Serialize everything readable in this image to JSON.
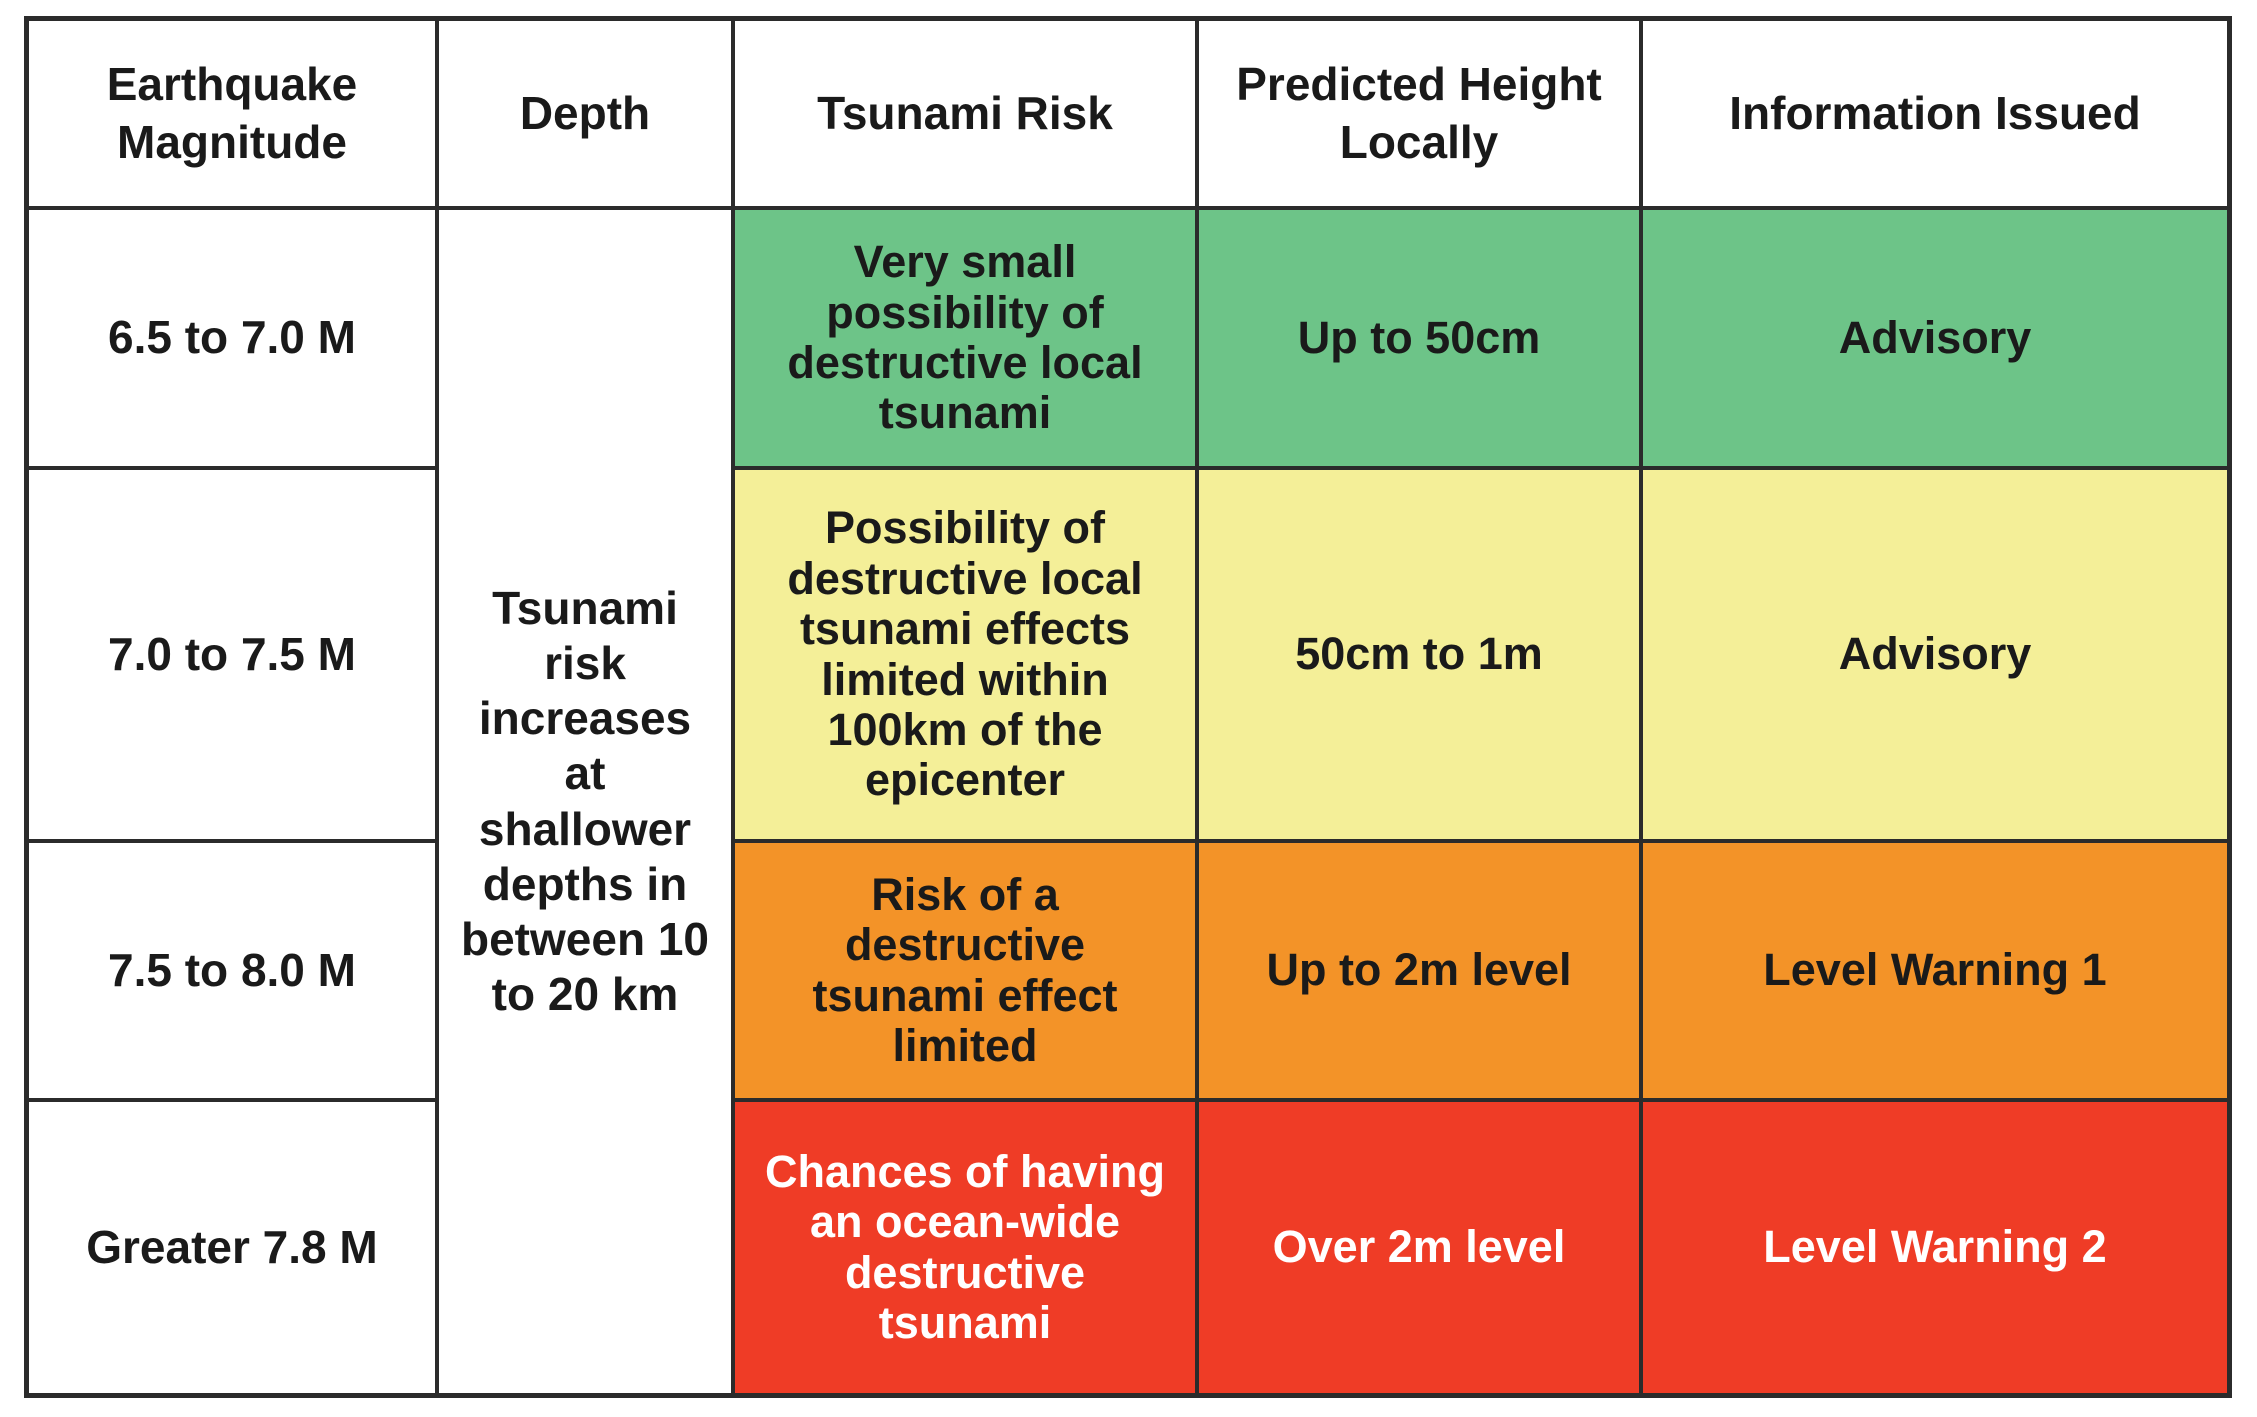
{
  "headers": {
    "magnitude": "Earthquake Magnitude",
    "depth": "Depth",
    "risk": "Tsunami Risk",
    "height": "Predicted Height Locally",
    "info": "Information Issued"
  },
  "depth_note": "Tsunami risk increases at shallower depths in between 10 to 20 km",
  "rows": [
    {
      "magnitude": "6.5 to 7.0 M",
      "risk": "Very small possibility of destructive local tsunami",
      "height": "Up to 50cm",
      "info": "Advisory",
      "color": "#6dc488"
    },
    {
      "magnitude": "7.0 to 7.5 M",
      "risk": "Possibility of destructive local tsunami effects limited within 100km of the epicenter",
      "height": "50cm to 1m",
      "info": "Advisory",
      "color": "#f4ef98"
    },
    {
      "magnitude": "7.5 to 8.0 M",
      "risk": "Risk of a destructive tsunami effect limited",
      "height": "Up to 2m level",
      "info": "Level Warning 1",
      "color": "#f39328"
    },
    {
      "magnitude": "Greater 7.8 M",
      "risk": "Chances of having an ocean-wide destructive tsunami",
      "height": "Over 2m level",
      "info": "Level Warning 2",
      "color": "#ef3c26"
    }
  ]
}
